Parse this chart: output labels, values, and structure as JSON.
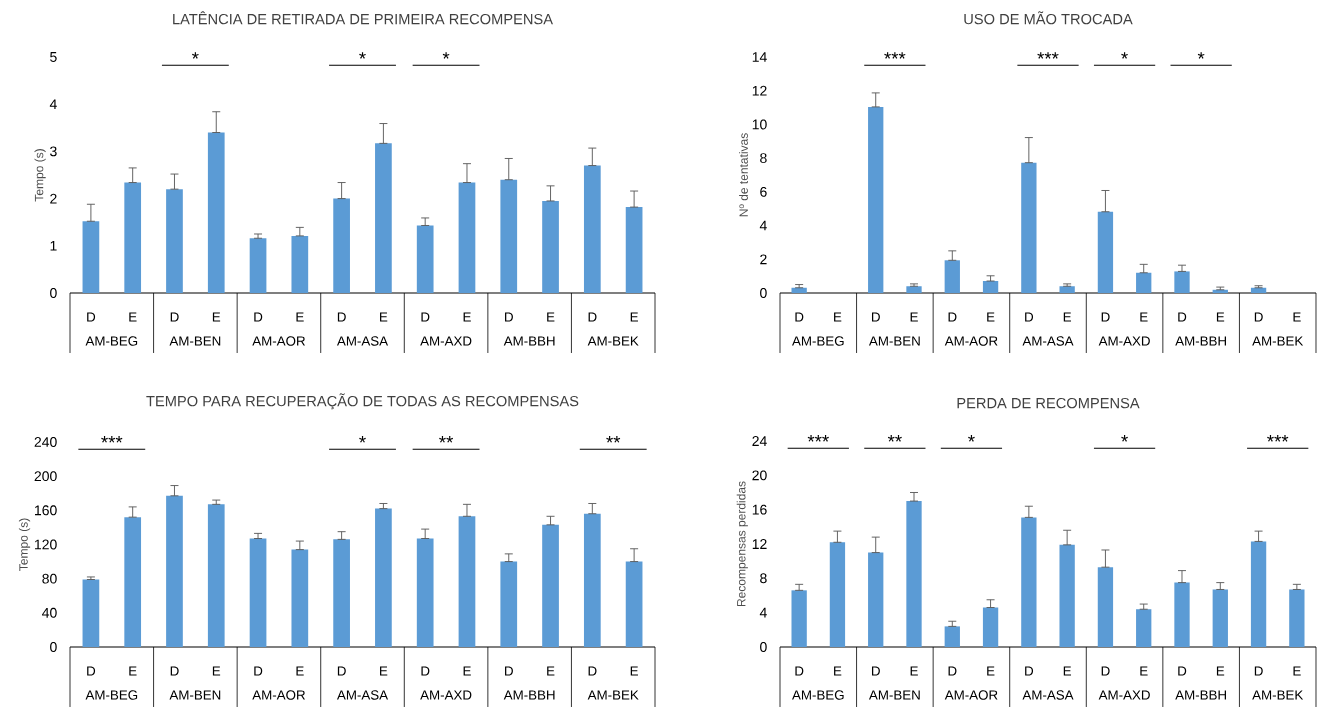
{
  "chart_data": [
    {
      "type": "bar",
      "title": "LATÊNCIA DE RETIRADA DE PRIMEIRA RECOMPENSA",
      "ylabel": "Tempo (s)",
      "categories": [
        "AM-BEG",
        "AM-BEN",
        "AM-AOR",
        "AM-ASA",
        "AM-AXD",
        "AM-BBH",
        "AM-BEK"
      ],
      "series": [
        {
          "name": "D",
          "color": "#5b9bd5",
          "values": [
            1.52,
            2.2,
            1.16,
            2.0,
            1.43,
            2.4,
            2.7
          ],
          "errors": [
            [
              1.52,
              1.88
            ],
            [
              2.2,
              2.52
            ],
            [
              1.16,
              1.25
            ],
            [
              2.0,
              2.34
            ],
            [
              1.43,
              1.59
            ],
            [
              2.4,
              2.85
            ],
            [
              2.7,
              3.07
            ]
          ]
        },
        {
          "name": "E",
          "color": "#5b9bd5",
          "values": [
            2.34,
            3.4,
            1.21,
            3.17,
            2.34,
            1.95,
            1.82
          ],
          "errors": [
            [
              2.34,
              2.65
            ],
            [
              3.4,
              3.84
            ],
            [
              1.21,
              1.39
            ],
            [
              3.17,
              3.59
            ],
            [
              2.34,
              2.74
            ],
            [
              1.95,
              2.27
            ],
            [
              1.82,
              2.16
            ]
          ]
        }
      ],
      "ylim": [
        0,
        5
      ],
      "yticks": [
        0,
        1,
        2,
        3,
        4,
        5
      ],
      "annotations": [
        "*",
        "*",
        "*"
      ]
    },
    {
      "type": "bar",
      "title": "USO DE MÃO TROCADA",
      "ylabel": "Nº de tentativas",
      "categories": [
        "AM-BEG",
        "AM-BEN",
        "AM-AOR",
        "AM-ASA",
        "AM-AXD",
        "AM-BBH",
        "AM-BEK"
      ],
      "series": [
        {
          "name": "D",
          "color": "#5b9bd5",
          "values": [
            0.31,
            11.04,
            1.94,
            7.73,
            4.82,
            1.28,
            0.31
          ],
          "errors": [
            [
              0.31,
              0.5
            ],
            [
              11.04,
              11.87
            ],
            [
              1.94,
              2.5
            ],
            [
              7.73,
              9.22
            ],
            [
              4.82,
              6.08
            ],
            [
              1.28,
              1.65
            ],
            [
              0.31,
              0.43
            ]
          ]
        },
        {
          "name": "E",
          "color": "#5b9bd5",
          "values": [
            0,
            0.4,
            0.71,
            0.4,
            1.2,
            0.19,
            0
          ],
          "errors": [
            null,
            [
              0.4,
              0.54
            ],
            [
              0.71,
              1.02
            ],
            [
              0.4,
              0.54
            ],
            [
              1.2,
              1.7
            ],
            [
              0.19,
              0.35
            ],
            null
          ]
        }
      ],
      "ylim": [
        0,
        14
      ],
      "yticks": [
        0,
        2,
        4,
        6,
        8,
        10,
        12,
        14
      ],
      "annotations": [
        "***",
        "***",
        "*",
        "*"
      ]
    },
    {
      "type": "bar",
      "title": "TEMPO PARA RECUPERAÇÃO DE TODAS AS RECOMPENSAS",
      "ylabel": "Tempo (s)",
      "categories": [
        "AM-BEG",
        "AM-BEN",
        "AM-AOR",
        "AM-ASA",
        "AM-AXD",
        "AM-BBH",
        "AM-BEK"
      ],
      "series": [
        {
          "name": "D",
          "color": "#5b9bd5",
          "values": [
            79,
            177,
            127,
            126,
            127,
            100,
            156
          ],
          "errors": [
            [
              79,
              82
            ],
            [
              177,
              189
            ],
            [
              127,
              133
            ],
            [
              126,
              135
            ],
            [
              127,
              138
            ],
            [
              100,
              109
            ],
            [
              156,
              168
            ]
          ]
        },
        {
          "name": "E",
          "color": "#5b9bd5",
          "values": [
            152,
            167,
            114,
            162,
            153,
            143,
            100
          ],
          "errors": [
            [
              152,
              164
            ],
            [
              167,
              172
            ],
            [
              114,
              124
            ],
            [
              162,
              168
            ],
            [
              153,
              167
            ],
            [
              143,
              153
            ],
            [
              100,
              115
            ]
          ]
        }
      ],
      "ylim": [
        0,
        240
      ],
      "yticks": [
        0,
        40,
        80,
        120,
        160,
        200,
        240
      ],
      "annotations": [
        "***",
        "*",
        "**",
        "**"
      ]
    },
    {
      "type": "bar",
      "title": "PERDA DE RECOMPENSA",
      "ylabel": "Recompensas perdidas",
      "categories": [
        "AM-BEG",
        "AM-BEN",
        "AM-AOR",
        "AM-ASA",
        "AM-AXD",
        "AM-BBH",
        "AM-BEK"
      ],
      "series": [
        {
          "name": "D",
          "color": "#5b9bd5",
          "values": [
            6.6,
            11.0,
            2.4,
            15.1,
            9.3,
            7.5,
            12.3
          ],
          "errors": [
            [
              6.6,
              7.3
            ],
            [
              11.0,
              12.8
            ],
            [
              2.4,
              3.0
            ],
            [
              15.1,
              16.4
            ],
            [
              9.3,
              11.3
            ],
            [
              7.5,
              8.9
            ],
            [
              12.3,
              13.5
            ]
          ]
        },
        {
          "name": "E",
          "color": "#5b9bd5",
          "values": [
            12.2,
            17.0,
            4.6,
            11.9,
            4.4,
            6.7,
            6.7
          ],
          "errors": [
            [
              12.2,
              13.5
            ],
            [
              17.0,
              18.0
            ],
            [
              4.6,
              5.5
            ],
            [
              11.9,
              13.6
            ],
            [
              4.4,
              5.0
            ],
            [
              6.7,
              7.5
            ],
            [
              6.7,
              7.3
            ]
          ]
        }
      ],
      "ylim": [
        0,
        24
      ],
      "yticks": [
        0,
        4,
        8,
        12,
        16,
        20,
        24
      ],
      "annotations": [
        "***",
        "**",
        "*",
        "*",
        "***"
      ]
    }
  ]
}
